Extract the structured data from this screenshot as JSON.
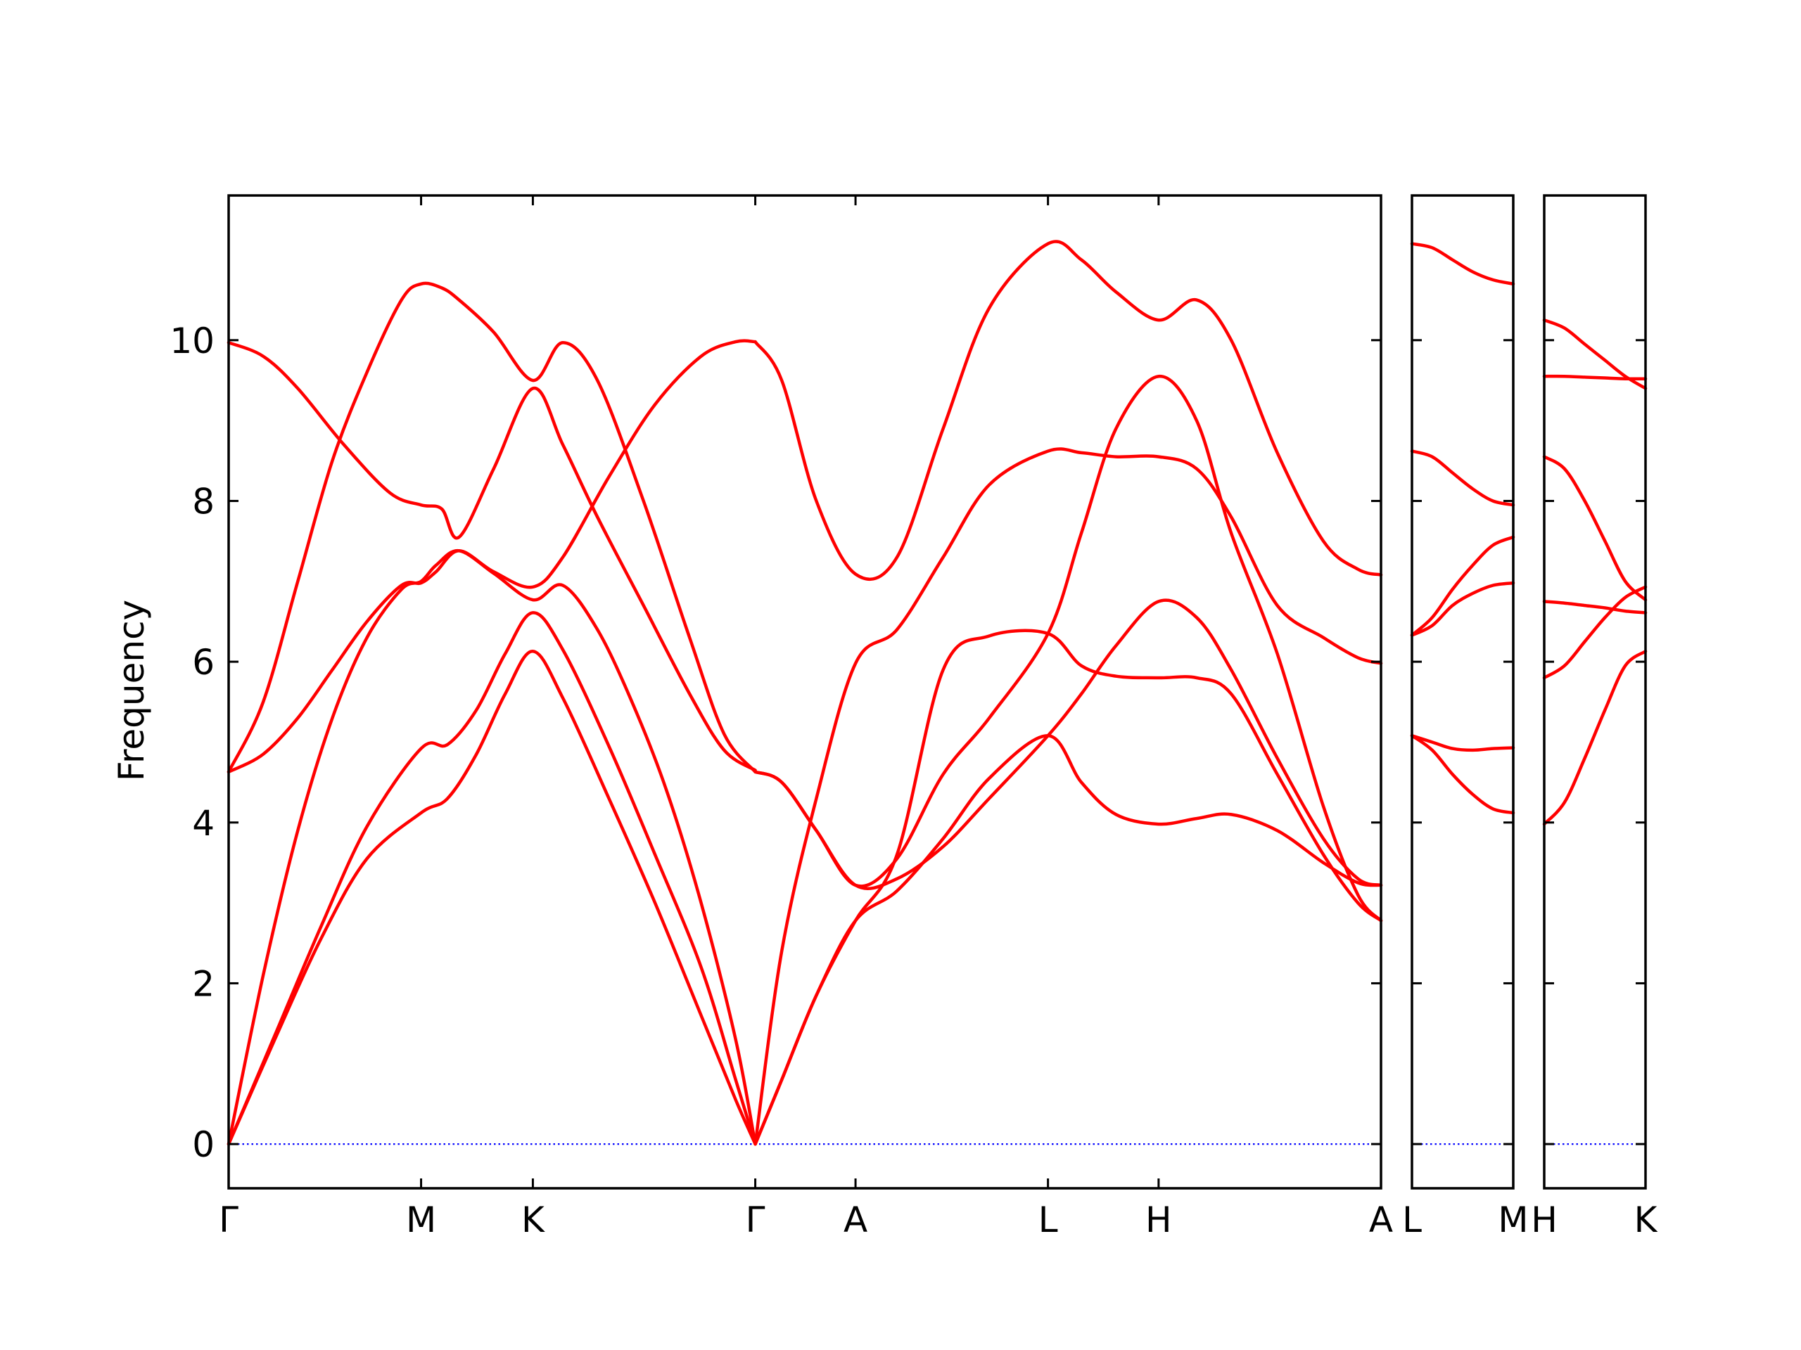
{
  "chart_data": {
    "type": "line",
    "ylabel": "Frequency",
    "ylim": [
      -0.55,
      11.8
    ],
    "yticks": [
      0,
      2,
      4,
      6,
      8,
      10
    ],
    "line_color": "#ff0000",
    "zero_line_color": "#0000ff",
    "panels": [
      {
        "id": "panel-main",
        "xlim": [
          0,
          1
        ],
        "ticks": [
          {
            "pos": 0.0,
            "label": "Γ"
          },
          {
            "pos": 0.167,
            "label": "M"
          },
          {
            "pos": 0.264,
            "label": "K"
          },
          {
            "pos": 0.457,
            "label": "Γ"
          },
          {
            "pos": 0.544,
            "label": "A"
          },
          {
            "pos": 0.711,
            "label": "L"
          },
          {
            "pos": 0.807,
            "label": "H"
          },
          {
            "pos": 1.0,
            "label": "A"
          }
        ],
        "bands": [
          {
            "x": [
              0,
              0.04,
              0.08,
              0.12,
              0.167,
              0.19,
              0.215,
              0.24,
              0.264,
              0.29,
              0.33,
              0.37,
              0.41,
              0.44,
              0.457
            ],
            "y": [
              0,
              1.3,
              2.55,
              3.55,
              4.12,
              4.3,
              4.85,
              5.6,
              6.13,
              5.55,
              4.3,
              3.0,
              1.6,
              0.55,
              0
            ]
          },
          {
            "x": [
              0,
              0.04,
              0.08,
              0.12,
              0.167,
              0.19,
              0.215,
              0.24,
              0.264,
              0.29,
              0.33,
              0.37,
              0.41,
              0.44,
              0.457
            ],
            "y": [
              0,
              1.35,
              2.7,
              3.95,
              4.92,
              4.97,
              5.4,
              6.1,
              6.61,
              6.15,
              4.95,
              3.6,
              2.2,
              0.8,
              0
            ]
          },
          {
            "x": [
              0,
              0.03,
              0.06,
              0.09,
              0.12,
              0.15,
              0.167,
              0.18,
              0.2,
              0.23,
              0.264,
              0.29,
              0.32,
              0.35,
              0.38,
              0.41,
              0.44,
              0.457
            ],
            "y": [
              0,
              2.1,
              3.9,
              5.3,
              6.3,
              6.9,
              7.0,
              7.2,
              7.38,
              7.1,
              6.77,
              6.95,
              6.4,
              5.5,
              4.4,
              3.0,
              1.3,
              0
            ]
          },
          {
            "x": [
              0,
              0.03,
              0.06,
              0.09,
              0.12,
              0.15,
              0.167,
              0.18,
              0.2,
              0.23,
              0.264,
              0.29,
              0.33,
              0.37,
              0.41,
              0.44,
              0.457
            ],
            "y": [
              4.63,
              4.85,
              5.3,
              5.9,
              6.5,
              6.95,
              6.98,
              7.12,
              7.38,
              7.12,
              6.93,
              7.3,
              8.3,
              9.2,
              9.8,
              9.98,
              9.98
            ]
          },
          {
            "x": [
              0,
              0.03,
              0.06,
              0.09,
              0.12,
              0.15,
              0.167,
              0.185,
              0.2,
              0.23,
              0.264,
              0.29,
              0.32,
              0.36,
              0.4,
              0.43,
              0.457
            ],
            "y": [
              4.63,
              5.5,
              7.0,
              8.5,
              9.6,
              10.5,
              10.7,
              10.65,
              10.5,
              10.1,
              9.5,
              9.97,
              9.5,
              8.0,
              6.3,
              5.1,
              4.63
            ]
          },
          {
            "x": [
              0,
              0.03,
              0.06,
              0.1,
              0.14,
              0.167,
              0.185,
              0.2,
              0.23,
              0.264,
              0.29,
              0.32,
              0.36,
              0.4,
              0.43,
              0.457
            ],
            "y": [
              9.97,
              9.8,
              9.4,
              8.7,
              8.1,
              7.95,
              7.9,
              7.55,
              8.4,
              9.4,
              8.7,
              7.8,
              6.7,
              5.6,
              4.9,
              4.65
            ]
          },
          {
            "x": [
              0.457,
              0.48,
              0.51,
              0.544,
              0.58,
              0.62,
              0.66,
              0.711,
              0.74,
              0.77,
              0.807,
              0.84,
              0.87,
              0.91,
              0.95,
              0.98,
              1.0
            ],
            "y": [
              9.98,
              9.5,
              8.0,
              7.09,
              7.3,
              8.9,
              10.4,
              11.2,
              11.0,
              10.6,
              10.25,
              10.5,
              10.0,
              8.6,
              7.5,
              7.15,
              7.08
            ]
          },
          {
            "x": [
              0.457,
              0.48,
              0.51,
              0.544,
              0.58,
              0.62,
              0.66,
              0.711,
              0.74,
              0.77,
              0.807,
              0.84,
              0.87,
              0.91,
              0.95,
              0.98,
              1.0
            ],
            "y": [
              4.63,
              4.5,
              3.9,
              3.22,
              3.3,
              3.7,
              4.3,
              5.08,
              5.6,
              6.2,
              6.75,
              6.55,
              5.9,
              4.8,
              3.8,
              3.3,
              3.22
            ]
          },
          {
            "x": [
              0.457,
              0.48,
              0.51,
              0.544,
              0.58,
              0.62,
              0.66,
              0.711,
              0.74,
              0.77,
              0.807,
              0.84,
              0.87,
              0.91,
              0.95,
              0.98,
              1.0
            ],
            "y": [
              0,
              0.8,
              1.85,
              2.78,
              3.15,
              3.8,
              4.55,
              5.08,
              4.5,
              4.1,
              3.98,
              4.05,
              4.1,
              3.9,
              3.5,
              3.25,
              3.22
            ]
          },
          {
            "x": [
              0.457,
              0.48,
              0.51,
              0.544,
              0.58,
              0.62,
              0.66,
              0.711,
              0.74,
              0.77,
              0.807,
              0.84,
              0.87,
              0.91,
              0.95,
              0.98,
              1.0
            ],
            "y": [
              0,
              2.4,
              4.3,
              5.98,
              6.4,
              7.3,
              8.2,
              8.62,
              8.6,
              8.55,
              8.55,
              8.4,
              7.8,
              6.7,
              6.3,
              6.05,
              5.98
            ]
          },
          {
            "x": [
              0.457,
              0.48,
              0.51,
              0.544,
              0.58,
              0.62,
              0.66,
              0.711,
              0.74,
              0.77,
              0.807,
              0.84,
              0.87,
              0.91,
              0.95,
              0.98,
              1.0
            ],
            "y": [
              4.63,
              4.5,
              3.9,
              3.22,
              3.55,
              4.6,
              5.3,
              6.35,
              7.6,
              8.9,
              9.55,
              9.0,
              7.6,
              6.1,
              4.2,
              3.1,
              2.78
            ]
          },
          {
            "x": [
              0.457,
              0.48,
              0.51,
              0.544,
              0.58,
              0.62,
              0.66,
              0.711,
              0.74,
              0.77,
              0.807,
              0.84,
              0.87,
              0.91,
              0.95,
              0.98,
              1.0
            ],
            "y": [
              0,
              0.8,
              1.85,
              2.78,
              3.6,
              5.9,
              6.32,
              6.35,
              5.95,
              5.82,
              5.8,
              5.8,
              5.6,
              4.6,
              3.6,
              3.0,
              2.78
            ]
          }
        ]
      },
      {
        "id": "panel-lm",
        "xlim": [
          0,
          1
        ],
        "ticks": [
          {
            "pos": 0.0,
            "label": "L"
          },
          {
            "pos": 1.0,
            "label": "M"
          }
        ],
        "bands": [
          {
            "x": [
              0,
              0.2,
              0.4,
              0.6,
              0.8,
              1.0
            ],
            "y": [
              11.2,
              11.15,
              11.0,
              10.85,
              10.75,
              10.7
            ]
          },
          {
            "x": [
              0,
              0.2,
              0.4,
              0.6,
              0.8,
              1.0
            ],
            "y": [
              8.62,
              8.55,
              8.35,
              8.15,
              8.0,
              7.95
            ]
          },
          {
            "x": [
              0,
              0.2,
              0.4,
              0.6,
              0.8,
              1.0
            ],
            "y": [
              6.33,
              6.55,
              6.9,
              7.2,
              7.45,
              7.55
            ]
          },
          {
            "x": [
              0,
              0.2,
              0.4,
              0.6,
              0.8,
              1.0
            ],
            "y": [
              6.33,
              6.45,
              6.7,
              6.85,
              6.95,
              6.98
            ]
          },
          {
            "x": [
              0,
              0.2,
              0.4,
              0.6,
              0.8,
              1.0
            ],
            "y": [
              5.08,
              5.0,
              4.92,
              4.9,
              4.92,
              4.93
            ]
          },
          {
            "x": [
              0,
              0.2,
              0.4,
              0.6,
              0.8,
              1.0
            ],
            "y": [
              5.08,
              4.9,
              4.6,
              4.35,
              4.17,
              4.12
            ]
          }
        ]
      },
      {
        "id": "panel-hk",
        "xlim": [
          0,
          1
        ],
        "ticks": [
          {
            "pos": 0.0,
            "label": "H"
          },
          {
            "pos": 1.0,
            "label": "K"
          }
        ],
        "bands": [
          {
            "x": [
              0,
              0.2,
              0.4,
              0.6,
              0.8,
              1.0
            ],
            "y": [
              10.25,
              10.15,
              9.95,
              9.75,
              9.55,
              9.4
            ]
          },
          {
            "x": [
              0,
              0.2,
              0.4,
              0.6,
              0.8,
              1.0
            ],
            "y": [
              9.55,
              9.55,
              9.54,
              9.53,
              9.52,
              9.52
            ]
          },
          {
            "x": [
              0,
              0.2,
              0.4,
              0.6,
              0.8,
              1.0
            ],
            "y": [
              8.55,
              8.4,
              8.0,
              7.5,
              7.0,
              6.77
            ]
          },
          {
            "x": [
              0,
              0.2,
              0.4,
              0.6,
              0.8,
              1.0
            ],
            "y": [
              6.75,
              6.73,
              6.7,
              6.67,
              6.63,
              6.61
            ]
          },
          {
            "x": [
              0,
              0.2,
              0.4,
              0.6,
              0.8,
              1.0
            ],
            "y": [
              5.8,
              5.95,
              6.25,
              6.55,
              6.8,
              6.93
            ]
          },
          {
            "x": [
              0,
              0.2,
              0.4,
              0.6,
              0.8,
              1.0
            ],
            "y": [
              3.98,
              4.25,
              4.8,
              5.4,
              5.95,
              6.13
            ]
          }
        ]
      }
    ]
  }
}
